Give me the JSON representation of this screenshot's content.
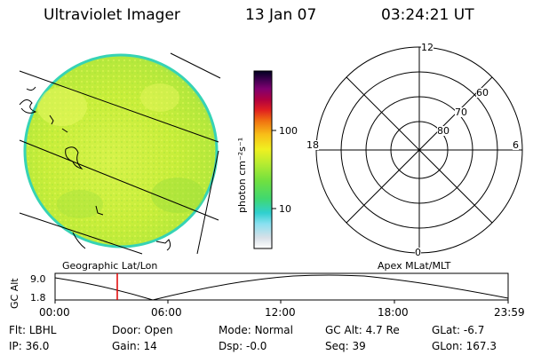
{
  "header": {
    "instrument": "Ultraviolet Imager",
    "date": "13 Jan 07",
    "time": "03:24:21 UT"
  },
  "image_panel": {
    "caption": "Geographic Lat/Lon",
    "disk_color": "#c8ee3a",
    "edge_color": "#36d3b5"
  },
  "colorbar": {
    "unit_label": "photon cm⁻²s⁻¹",
    "tick_labels": [
      "100",
      "10"
    ],
    "scale": "log"
  },
  "polar_plot": {
    "caption": "Apex MLat/MLT",
    "mlt_labels": [
      "12",
      "18",
      "6",
      "0"
    ],
    "lat_labels": [
      "60",
      "70",
      "80"
    ]
  },
  "altitude_strip": {
    "ylabel": "GC Alt",
    "y_ticks": [
      "9.0",
      "1.8"
    ],
    "x_ticks": [
      "00:00",
      "06:00",
      "12:00",
      "18:00",
      "23:59"
    ],
    "current_marker_color": "#e00000",
    "current_time": "03:24"
  },
  "status": {
    "row1": [
      {
        "label": "Flt:",
        "value": "LBHL"
      },
      {
        "label": "Door:",
        "value": "Open"
      },
      {
        "label": "Mode:",
        "value": "Normal"
      },
      {
        "label": "GC Alt:",
        "value": "4.7 Re"
      },
      {
        "label": "GLat:",
        "value": "-6.7"
      }
    ],
    "row2": [
      {
        "label": "IP:",
        "value": "36.0"
      },
      {
        "label": "Gain:",
        "value": "14"
      },
      {
        "label": "Dsp:",
        "value": "-0.0"
      },
      {
        "label": "Seq:",
        "value": "39"
      },
      {
        "label": "GLon:",
        "value": "167.3"
      }
    ]
  }
}
